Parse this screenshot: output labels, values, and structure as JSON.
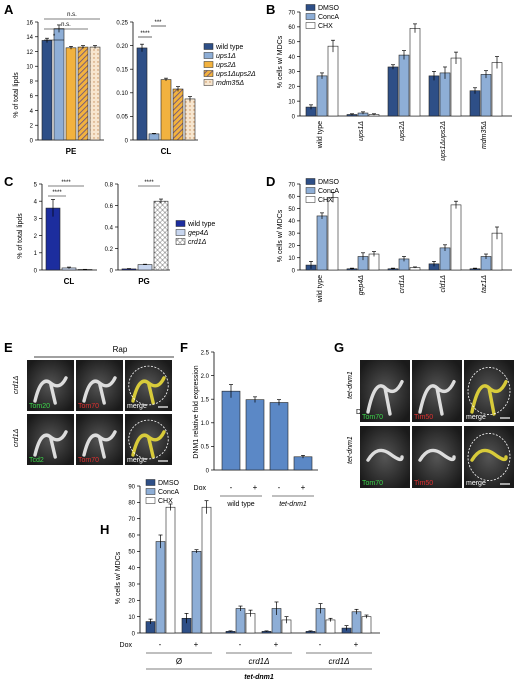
{
  "panels": {
    "A": {
      "letter": "A",
      "ylabel": "% of total lipds",
      "groups": [
        "PE",
        "CL"
      ],
      "legend": [
        "wild type",
        "ups1Δ",
        "ups2Δ",
        "ups1Δups2Δ",
        "mdm35Δ"
      ],
      "sig": [
        "n.s.",
        "n.s.",
        "*",
        "****",
        "***"
      ],
      "axis1_ticks": [
        "0",
        "2",
        "4",
        "6",
        "8",
        "10",
        "12",
        "14",
        "16"
      ],
      "axis2_ticks": [
        "0",
        "0.05",
        "0.10",
        "0.15",
        "0.20",
        "0.25"
      ]
    },
    "B": {
      "letter": "B",
      "ylabel": "% cells w/ MDCs",
      "legend": [
        "DMSO",
        "ConcA",
        "CHX"
      ],
      "categories": [
        "wild type",
        "ups1Δ",
        "ups2Δ",
        "ups1Δups2Δ",
        "mdm35Δ"
      ],
      "ticks": [
        "0",
        "10",
        "20",
        "30",
        "40",
        "50",
        "60",
        "70"
      ]
    },
    "C": {
      "letter": "C",
      "ylabel": "% of total lipds",
      "groups": [
        "CL",
        "PG"
      ],
      "legend": [
        "wild type",
        "gep4Δ",
        "crd1Δ"
      ],
      "sig": [
        "****",
        "****",
        "****"
      ],
      "axis1_ticks": [
        "0",
        "1",
        "2",
        "3",
        "4",
        "5"
      ],
      "axis2_ticks": [
        "0",
        "0.2",
        "0.4",
        "0.6",
        "0.8"
      ]
    },
    "D": {
      "letter": "D",
      "ylabel": "% cells w/ MDCs",
      "legend": [
        "DMSO",
        "ConcA",
        "CHX"
      ],
      "categories": [
        "wild type",
        "gep4Δ",
        "crd1Δ",
        "cld1Δ",
        "taz1Δ"
      ],
      "ticks": [
        "0",
        "10",
        "20",
        "30",
        "40",
        "50",
        "60",
        "70"
      ]
    },
    "E": {
      "letter": "E",
      "condition": "Rap",
      "row_labels": [
        "crd1Δ",
        "crd1Δ"
      ],
      "row1": [
        "Tom20",
        "Tom70",
        "merge"
      ],
      "row2": [
        "Tcd2",
        "Tom70",
        "merge"
      ]
    },
    "F": {
      "letter": "F",
      "ylabel": "DNM1 relative fold expression",
      "ticks": [
        "0",
        "0.5",
        "1.0",
        "1.5",
        "2.0",
        "2.5"
      ],
      "dox_label": "Dox",
      "dox_values": [
        "-",
        "+",
        "-",
        "+"
      ],
      "group_labels": [
        "wild type",
        "tet-dnm1"
      ]
    },
    "G": {
      "letter": "G",
      "row_labels": [
        "tet-dnm1",
        "tet-dnm1"
      ],
      "dox_label": "Dox",
      "row1": [
        "Tom70",
        "Tim50",
        "merge"
      ],
      "row2": [
        "Tom70",
        "Tim50",
        "merge"
      ]
    },
    "H": {
      "letter": "H",
      "ylabel": "% cells w/ MDCs",
      "legend": [
        "DMSO",
        "ConcA",
        "CHX"
      ],
      "ticks": [
        "0",
        "10",
        "20",
        "30",
        "40",
        "50",
        "60",
        "70",
        "80",
        "90"
      ],
      "dox_label": "Dox",
      "dox_values": [
        "-",
        "+",
        "-",
        "+",
        "-",
        "+"
      ],
      "groups": [
        "Ø",
        "crd1Δ",
        "crd1Δ"
      ],
      "bottom_label": "tet-dnm1"
    }
  },
  "colors": {
    "dark_blue": "#2e4f87",
    "light_blue": "#8eaed6",
    "white": "#ffffff",
    "orange": "#f2b23f",
    "navy": "#1c2d9e",
    "pale_blue": "#c8d6ef",
    "bar_f": "#5b88c6",
    "yellow": "#e0d33a"
  },
  "chart_data": [
    {
      "id": "A-PE",
      "type": "bar",
      "categories": [
        "PE"
      ],
      "series": [
        {
          "name": "wild type",
          "values": [
            13.5
          ]
        },
        {
          "name": "ups1Δ",
          "values": [
            15.1
          ]
        },
        {
          "name": "ups2Δ",
          "values": [
            12.5
          ]
        },
        {
          "name": "ups1Δups2Δ",
          "values": [
            12.6
          ]
        },
        {
          "name": "mdm35Δ",
          "values": [
            12.6
          ]
        }
      ],
      "errors": [
        0.3,
        0.5,
        0.2,
        0.2,
        0.2
      ],
      "ylim": [
        0,
        16
      ]
    },
    {
      "id": "A-CL",
      "type": "bar",
      "categories": [
        "CL"
      ],
      "series": [
        {
          "name": "wild type",
          "values": [
            0.195
          ]
        },
        {
          "name": "ups1Δ",
          "values": [
            0.013
          ]
        },
        {
          "name": "ups2Δ",
          "values": [
            0.128
          ]
        },
        {
          "name": "ups1Δups2Δ",
          "values": [
            0.108
          ]
        },
        {
          "name": "mdm35Δ",
          "values": [
            0.087
          ]
        }
      ],
      "errors": [
        0.008,
        0.001,
        0.003,
        0.005,
        0.005
      ],
      "ylim": [
        0,
        0.25
      ]
    },
    {
      "id": "B",
      "type": "bar",
      "categories": [
        "wild type",
        "ups1Δ",
        "ups2Δ",
        "ups1Δups2Δ",
        "mdm35Δ"
      ],
      "series": [
        {
          "name": "DMSO",
          "values": [
            6,
            1,
            33,
            27,
            17
          ]
        },
        {
          "name": "ConcA",
          "values": [
            27,
            2,
            41,
            29,
            28
          ]
        },
        {
          "name": "CHX",
          "values": [
            47,
            1,
            59,
            39,
            36
          ]
        }
      ],
      "errors": [
        [
          1.5,
          0.5,
          1.5,
          3,
          2
        ],
        [
          2,
          0.8,
          3,
          4,
          2.5
        ],
        [
          4,
          0.5,
          3,
          4,
          4
        ]
      ],
      "ylim": [
        0,
        70
      ]
    },
    {
      "id": "C-CL",
      "type": "bar",
      "categories": [
        "CL"
      ],
      "series": [
        {
          "name": "wild type",
          "values": [
            3.6
          ]
        },
        {
          "name": "gep4Δ",
          "values": [
            0.12
          ]
        },
        {
          "name": "crd1Δ",
          "values": [
            0.03
          ]
        }
      ],
      "errors": [
        0.5,
        0.05,
        0.01
      ],
      "ylim": [
        0,
        5
      ]
    },
    {
      "id": "C-PG",
      "type": "bar",
      "categories": [
        "PG"
      ],
      "series": [
        {
          "name": "wild type",
          "values": [
            0.01
          ]
        },
        {
          "name": "gep4Δ",
          "values": [
            0.05
          ]
        },
        {
          "name": "crd1Δ",
          "values": [
            0.64
          ]
        }
      ],
      "errors": [
        0.003,
        0.004,
        0.02
      ],
      "ylim": [
        0,
        0.8
      ]
    },
    {
      "id": "D",
      "type": "bar",
      "categories": [
        "wild type",
        "gep4Δ",
        "crd1Δ",
        "cld1Δ",
        "taz1Δ"
      ],
      "series": [
        {
          "name": "DMSO",
          "values": [
            4,
            1,
            1,
            5,
            1
          ]
        },
        {
          "name": "ConcA",
          "values": [
            44,
            11,
            9,
            18,
            11
          ]
        },
        {
          "name": "CHX",
          "values": [
            59,
            13,
            2,
            53,
            30
          ]
        }
      ],
      "errors": [
        [
          3,
          0.5,
          0.5,
          2,
          0.5
        ],
        [
          2.5,
          3,
          2,
          2.5,
          2
        ],
        [
          4,
          2,
          0.5,
          3,
          5
        ]
      ],
      "ylim": [
        0,
        70
      ]
    },
    {
      "id": "F",
      "type": "bar",
      "categories": [
        "wild type -",
        "wild type +",
        "tet-dnm1 -",
        "tet-dnm1 +"
      ],
      "values": [
        1.67,
        1.49,
        1.43,
        0.28
      ],
      "errors": [
        0.14,
        0.06,
        0.06,
        0.03
      ],
      "ylim": [
        0,
        2.5
      ]
    },
    {
      "id": "H",
      "type": "bar",
      "categories": [
        "Ø -",
        "Ø +",
        "crd1Δ -",
        "crd1Δ +",
        "crd1Δ -",
        "crd1Δ +"
      ],
      "series": [
        {
          "name": "DMSO",
          "values": [
            7,
            9,
            1,
            1,
            1,
            3
          ]
        },
        {
          "name": "ConcA",
          "values": [
            56,
            50,
            15,
            15,
            15,
            13
          ]
        },
        {
          "name": "CHX",
          "values": [
            77,
            77,
            12,
            8,
            8,
            10
          ]
        }
      ],
      "errors": [
        [
          1.5,
          3,
          0.3,
          0.3,
          0.3,
          1.5
        ],
        [
          4,
          1,
          1.5,
          4,
          3,
          1.5
        ],
        [
          2,
          4,
          2,
          2,
          1,
          1
        ]
      ],
      "ylim": [
        0,
        90
      ]
    }
  ]
}
